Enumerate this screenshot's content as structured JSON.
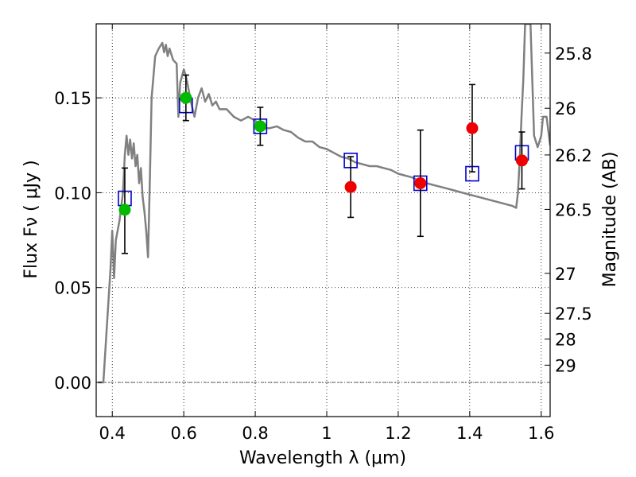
{
  "chart_data": {
    "type": "scatter",
    "xlabel": "Wavelength  λ (μm)",
    "ylabel": "Flux  Fν  ( μJy )",
    "ylabel_right": "Magnitude (AB)",
    "xlim": [
      0.355,
      1.625
    ],
    "ylim": [
      -0.018,
      0.189
    ],
    "x_ticks": [
      {
        "value": 0.4,
        "label": "0.4"
      },
      {
        "value": 0.6,
        "label": "0.6"
      },
      {
        "value": 0.8,
        "label": "0.8"
      },
      {
        "value": 1.0,
        "label": "1"
      },
      {
        "value": 1.2,
        "label": "1.2"
      },
      {
        "value": 1.4,
        "label": "1.4"
      },
      {
        "value": 1.6,
        "label": "1.6"
      }
    ],
    "y_ticks": [
      {
        "value": 0.0,
        "label": "0.00"
      },
      {
        "value": 0.05,
        "label": "0.05"
      },
      {
        "value": 0.1,
        "label": "0.10"
      },
      {
        "value": 0.15,
        "label": "0.15"
      }
    ],
    "right_ticks": [
      {
        "label": "25.8",
        "flux": 0.1736
      },
      {
        "label": "26",
        "flux": 0.1445
      },
      {
        "label": "26.2",
        "flux": 0.1199
      },
      {
        "label": "26.5",
        "flux": 0.0912
      },
      {
        "label": "27",
        "flux": 0.0575
      },
      {
        "label": "27.5",
        "flux": 0.0364
      },
      {
        "label": "28",
        "flux": 0.0229
      },
      {
        "label": "29",
        "flux": 0.0091
      }
    ],
    "grid": true,
    "colors": {
      "model": "#808080",
      "detection": "#00bb00",
      "nondetection": "#ee0000",
      "model_box": "#0000cc",
      "errorbar": "#000000"
    },
    "model_sed": [
      [
        0.36,
        0.0
      ],
      [
        0.375,
        0.0
      ],
      [
        0.385,
        0.03
      ],
      [
        0.395,
        0.06
      ],
      [
        0.4,
        0.08
      ],
      [
        0.405,
        0.055
      ],
      [
        0.41,
        0.075
      ],
      [
        0.42,
        0.085
      ],
      [
        0.43,
        0.1
      ],
      [
        0.435,
        0.12
      ],
      [
        0.44,
        0.13
      ],
      [
        0.445,
        0.12
      ],
      [
        0.45,
        0.128
      ],
      [
        0.455,
        0.118
      ],
      [
        0.46,
        0.126
      ],
      [
        0.465,
        0.114
      ],
      [
        0.47,
        0.12
      ],
      [
        0.475,
        0.105
      ],
      [
        0.48,
        0.113
      ],
      [
        0.485,
        0.098
      ],
      [
        0.49,
        0.09
      ],
      [
        0.495,
        0.08
      ],
      [
        0.5,
        0.066
      ],
      [
        0.505,
        0.105
      ],
      [
        0.51,
        0.15
      ],
      [
        0.52,
        0.172
      ],
      [
        0.53,
        0.176
      ],
      [
        0.54,
        0.179
      ],
      [
        0.545,
        0.174
      ],
      [
        0.55,
        0.178
      ],
      [
        0.555,
        0.172
      ],
      [
        0.56,
        0.176
      ],
      [
        0.57,
        0.17
      ],
      [
        0.58,
        0.168
      ],
      [
        0.585,
        0.14
      ],
      [
        0.59,
        0.158
      ],
      [
        0.6,
        0.165
      ],
      [
        0.605,
        0.162
      ],
      [
        0.61,
        0.158
      ],
      [
        0.62,
        0.148
      ],
      [
        0.63,
        0.14
      ],
      [
        0.64,
        0.15
      ],
      [
        0.65,
        0.155
      ],
      [
        0.66,
        0.148
      ],
      [
        0.67,
        0.152
      ],
      [
        0.68,
        0.146
      ],
      [
        0.69,
        0.148
      ],
      [
        0.7,
        0.144
      ],
      [
        0.72,
        0.144
      ],
      [
        0.74,
        0.14
      ],
      [
        0.76,
        0.138
      ],
      [
        0.78,
        0.14
      ],
      [
        0.8,
        0.138
      ],
      [
        0.81,
        0.136
      ],
      [
        0.82,
        0.134
      ],
      [
        0.84,
        0.134
      ],
      [
        0.86,
        0.135
      ],
      [
        0.88,
        0.133
      ],
      [
        0.9,
        0.132
      ],
      [
        0.92,
        0.129
      ],
      [
        0.94,
        0.127
      ],
      [
        0.96,
        0.127
      ],
      [
        0.98,
        0.124
      ],
      [
        1.0,
        0.123
      ],
      [
        1.02,
        0.121
      ],
      [
        1.04,
        0.119
      ],
      [
        1.06,
        0.118
      ],
      [
        1.08,
        0.116
      ],
      [
        1.1,
        0.115
      ],
      [
        1.12,
        0.114
      ],
      [
        1.14,
        0.114
      ],
      [
        1.16,
        0.113
      ],
      [
        1.18,
        0.112
      ],
      [
        1.2,
        0.11
      ],
      [
        1.22,
        0.109
      ],
      [
        1.24,
        0.108
      ],
      [
        1.26,
        0.106
      ],
      [
        1.28,
        0.105
      ],
      [
        1.3,
        0.104
      ],
      [
        1.32,
        0.103
      ],
      [
        1.34,
        0.102
      ],
      [
        1.36,
        0.101
      ],
      [
        1.38,
        0.1
      ],
      [
        1.4,
        0.099
      ],
      [
        1.42,
        0.098
      ],
      [
        1.44,
        0.097
      ],
      [
        1.46,
        0.096
      ],
      [
        1.48,
        0.095
      ],
      [
        1.5,
        0.094
      ],
      [
        1.52,
        0.093
      ],
      [
        1.53,
        0.092
      ],
      [
        1.535,
        0.1
      ],
      [
        1.54,
        0.118
      ],
      [
        1.545,
        0.14
      ],
      [
        1.55,
        0.16
      ],
      [
        1.555,
        0.189
      ],
      [
        1.57,
        0.189
      ],
      [
        1.575,
        0.16
      ],
      [
        1.58,
        0.13
      ],
      [
        1.59,
        0.124
      ],
      [
        1.6,
        0.13
      ],
      [
        1.605,
        0.14
      ],
      [
        1.615,
        0.14
      ],
      [
        1.625,
        0.125
      ]
    ],
    "model_points": [
      {
        "x": 0.435,
        "y": 0.097
      },
      {
        "x": 0.606,
        "y": 0.146
      },
      {
        "x": 0.814,
        "y": 0.135
      },
      {
        "x": 1.067,
        "y": 0.117
      },
      {
        "x": 1.262,
        "y": 0.105
      },
      {
        "x": 1.407,
        "y": 0.11
      },
      {
        "x": 1.546,
        "y": 0.121
      }
    ],
    "observations": [
      {
        "x": 0.435,
        "y": 0.091,
        "yerr_low": 0.068,
        "yerr_high": 0.113,
        "kind": "detection"
      },
      {
        "x": 0.606,
        "y": 0.15,
        "yerr_low": 0.138,
        "yerr_high": 0.162,
        "kind": "detection"
      },
      {
        "x": 0.814,
        "y": 0.135,
        "yerr_low": 0.125,
        "yerr_high": 0.145,
        "kind": "detection"
      },
      {
        "x": 1.067,
        "y": 0.103,
        "yerr_low": 0.087,
        "yerr_high": 0.119,
        "kind": "nondetection"
      },
      {
        "x": 1.262,
        "y": 0.105,
        "yerr_low": 0.077,
        "yerr_high": 0.133,
        "kind": "nondetection"
      },
      {
        "x": 1.407,
        "y": 0.134,
        "yerr_low": 0.111,
        "yerr_high": 0.157,
        "kind": "nondetection"
      },
      {
        "x": 1.546,
        "y": 0.117,
        "yerr_low": 0.102,
        "yerr_high": 0.132,
        "kind": "nondetection"
      }
    ]
  }
}
